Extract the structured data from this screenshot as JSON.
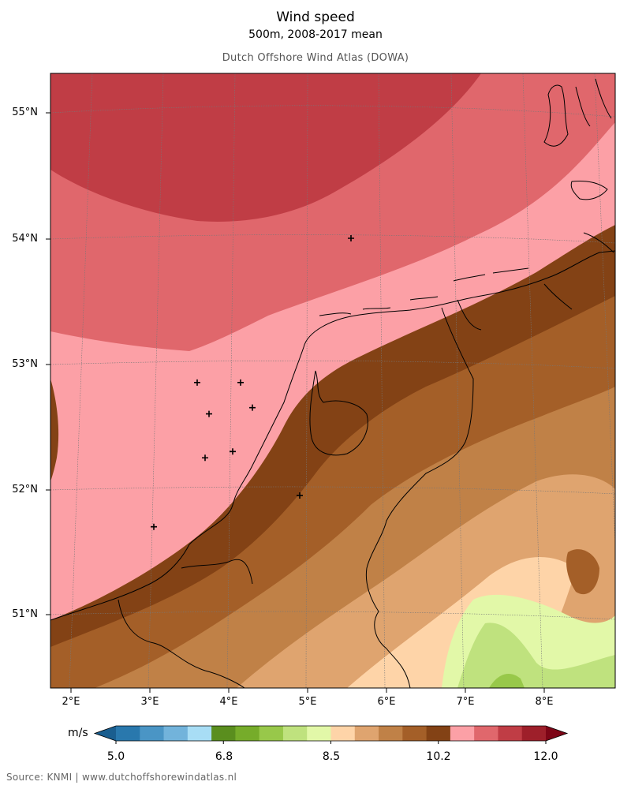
{
  "header": {
    "title": "Wind speed",
    "subtitle": "500m, 2008-2017 mean",
    "atlas": "Dutch Offshore Wind Atlas (DOWA)"
  },
  "map": {
    "lat_labels": [
      "55°N",
      "54°N",
      "53°N",
      "52°N",
      "51°N"
    ],
    "lon_labels": [
      "2°E",
      "3°E",
      "4°E",
      "5°E",
      "6°E",
      "7°E",
      "8°E"
    ],
    "extent": {
      "lon": [
        1.75,
        8.9
      ],
      "lat": [
        50.4,
        55.3
      ]
    },
    "stations": [
      {
        "lon": 5.55,
        "lat": 54.0
      },
      {
        "lon": 3.6,
        "lat": 52.85
      },
      {
        "lon": 4.15,
        "lat": 52.85
      },
      {
        "lon": 3.75,
        "lat": 52.6
      },
      {
        "lon": 4.3,
        "lat": 52.65
      },
      {
        "lon": 3.7,
        "lat": 52.25
      },
      {
        "lon": 4.05,
        "lat": 52.3
      },
      {
        "lon": 4.9,
        "lat": 51.95
      },
      {
        "lon": 3.05,
        "lat": 51.7
      }
    ]
  },
  "colorbar": {
    "unit": "m/s",
    "ticks": [
      "5.0",
      "6.8",
      "8.5",
      "10.2",
      "12.0"
    ],
    "min": 5.0,
    "max": 12.0,
    "colors": [
      "#1a5e8f",
      "#2978ad",
      "#4a95c5",
      "#72b3db",
      "#a8ddf5",
      "#5a8e1e",
      "#76ac2a",
      "#98c84a",
      "#bfe27e",
      "#e2f8a8",
      "#fed4a8",
      "#dfa46f",
      "#c08147",
      "#a45f28",
      "#834215",
      "#fca0a6",
      "#e0676c",
      "#c03d45",
      "#9e1f2a",
      "#7d0516"
    ]
  },
  "footer": "Source: KNMI | www.dutchoffshorewindatlas.nl"
}
